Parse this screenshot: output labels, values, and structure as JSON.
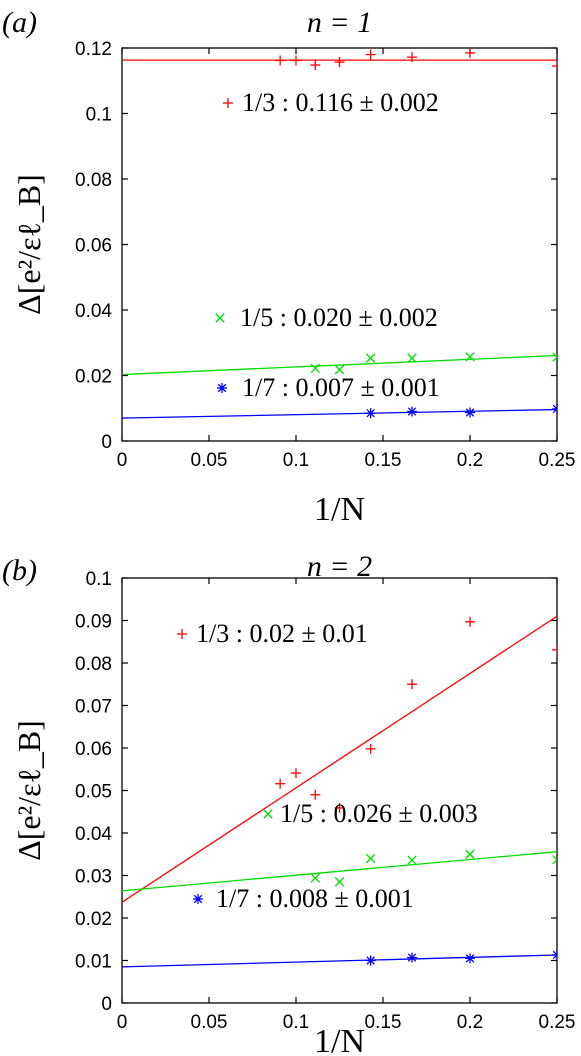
{
  "chart_data": [
    {
      "type": "scatter",
      "panel_label": "(a)",
      "title": "n = 1",
      "xlabel": "1/N",
      "ylabel": "Δ[e²/εℓ_B]",
      "xlim": [
        0,
        0.25
      ],
      "ylim": [
        0,
        0.12
      ],
      "x_ticks": [
        0,
        0.05,
        0.1,
        0.15,
        0.2,
        0.25
      ],
      "x_tick_labels": [
        "0",
        "0.05",
        "0.1",
        "0.15",
        "0.2",
        "0.25"
      ],
      "y_ticks": [
        0,
        0.02,
        0.04,
        0.06,
        0.08,
        0.1,
        0.12
      ],
      "y_tick_labels": [
        "0",
        "0.02",
        "0.04",
        "0.06",
        "0.08",
        "0.1",
        "0.12"
      ],
      "grid": false,
      "series": [
        {
          "name": "1/3 : 0.116 ± 0.002",
          "marker": "plus",
          "color": "#ff0000",
          "x": [
            0.0909,
            0.1,
            0.1111,
            0.125,
            0.1429,
            0.1667,
            0.2,
            0.25
          ],
          "y": [
            0.1162,
            0.1162,
            0.1148,
            0.1157,
            0.118,
            0.1172,
            0.1185,
            0.1145
          ],
          "fit": {
            "x": [
              0,
              0.25
            ],
            "y": [
              0.1163,
              0.1163
            ]
          }
        },
        {
          "name": "1/5 : 0.020 ± 0.002",
          "marker": "x",
          "color": "#00dd00",
          "x": [
            0.1111,
            0.125,
            0.1429,
            0.1667,
            0.2,
            0.25
          ],
          "y": [
            0.0222,
            0.0218,
            0.0253,
            0.0253,
            0.0257,
            0.0256
          ],
          "fit": {
            "x": [
              0,
              0.25
            ],
            "y": [
              0.0203,
              0.0261
            ]
          }
        },
        {
          "name": "1/7 : 0.007 ± 0.001",
          "marker": "star",
          "color": "#0000ff",
          "x": [
            0.1429,
            0.1667,
            0.2,
            0.25
          ],
          "y": [
            0.0085,
            0.009,
            0.0087,
            0.0098
          ],
          "fit": {
            "x": [
              0,
              0.25
            ],
            "y": [
              0.007,
              0.0096
            ]
          }
        }
      ]
    },
    {
      "type": "scatter",
      "panel_label": "(b)",
      "title": "n = 2",
      "xlabel": "1/N",
      "ylabel": "Δ[e²/εℓ_B]",
      "xlim": [
        0,
        0.25
      ],
      "ylim": [
        0,
        0.1
      ],
      "x_ticks": [
        0,
        0.05,
        0.1,
        0.15,
        0.2,
        0.25
      ],
      "x_tick_labels": [
        "0",
        "0.05",
        "0.1",
        "0.15",
        "0.2",
        "0.25"
      ],
      "y_ticks": [
        0,
        0.01,
        0.02,
        0.03,
        0.04,
        0.05,
        0.06,
        0.07,
        0.08,
        0.09,
        0.1
      ],
      "y_tick_labels": [
        "0",
        "0.01",
        "0.02",
        "0.03",
        "0.04",
        "0.05",
        "0.06",
        "0.07",
        "0.08",
        "0.09",
        "0.1"
      ],
      "grid": false,
      "series": [
        {
          "name": "1/3 : 0.02 ± 0.01",
          "marker": "plus",
          "color": "#ff0000",
          "x": [
            0.0909,
            0.1,
            0.1111,
            0.125,
            0.1429,
            0.1667,
            0.2,
            0.25
          ],
          "y": [
            0.0516,
            0.0541,
            0.049,
            0.0459,
            0.0598,
            0.075,
            0.0897,
            0.0831
          ],
          "fit": {
            "x": [
              0,
              0.25
            ],
            "y": [
              0.0237,
              0.091
            ]
          }
        },
        {
          "name": "1/5 : 0.026 ± 0.003",
          "marker": "x",
          "color": "#00dd00",
          "x": [
            0.1111,
            0.125,
            0.1429,
            0.1667,
            0.2,
            0.25
          ],
          "y": [
            0.0294,
            0.0285,
            0.034,
            0.0336,
            0.035,
            0.0337
          ],
          "fit": {
            "x": [
              0,
              0.25
            ],
            "y": [
              0.0264,
              0.0356
            ]
          }
        },
        {
          "name": "1/7 : 0.008 ± 0.001",
          "marker": "star",
          "color": "#0000ff",
          "x": [
            0.1429,
            0.1667,
            0.2,
            0.25
          ],
          "y": [
            0.01,
            0.0107,
            0.0105,
            0.0113
          ],
          "fit": {
            "x": [
              0,
              0.25
            ],
            "y": [
              0.0085,
              0.0113
            ]
          }
        }
      ]
    }
  ]
}
